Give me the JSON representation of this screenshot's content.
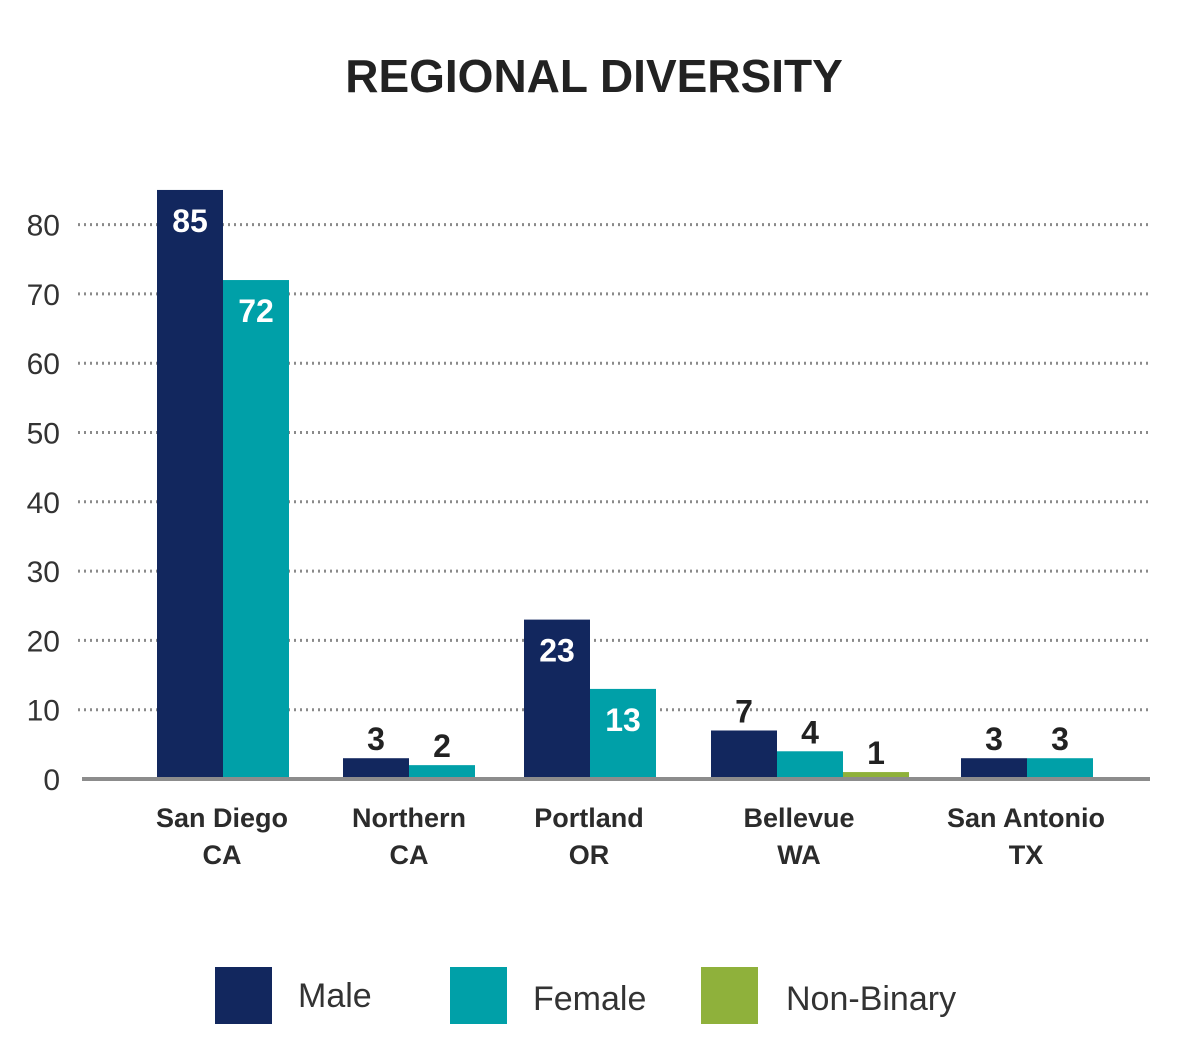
{
  "chart_data": {
    "type": "bar",
    "title": "REGIONAL DIVERSITY",
    "xlabel": "",
    "ylabel": "",
    "ylim": [
      0,
      85
    ],
    "yticks": [
      0,
      10,
      20,
      30,
      40,
      50,
      60,
      70,
      80
    ],
    "grid": true,
    "legend_position": "bottom",
    "categories": [
      [
        "San Diego",
        "CA"
      ],
      [
        "Northern",
        "CA"
      ],
      [
        "Portland",
        "OR"
      ],
      [
        "Bellevue",
        "WA"
      ],
      [
        "San Antonio",
        "TX"
      ]
    ],
    "series": [
      {
        "name": "Male",
        "color": "#12275e",
        "values": [
          85,
          3,
          23,
          7,
          3
        ]
      },
      {
        "name": "Female",
        "color": "#00a0a8",
        "values": [
          72,
          2,
          13,
          4,
          3
        ]
      },
      {
        "name": "Non-Binary",
        "color": "#8fb13b",
        "values": [
          null,
          null,
          null,
          1,
          null
        ]
      }
    ]
  }
}
